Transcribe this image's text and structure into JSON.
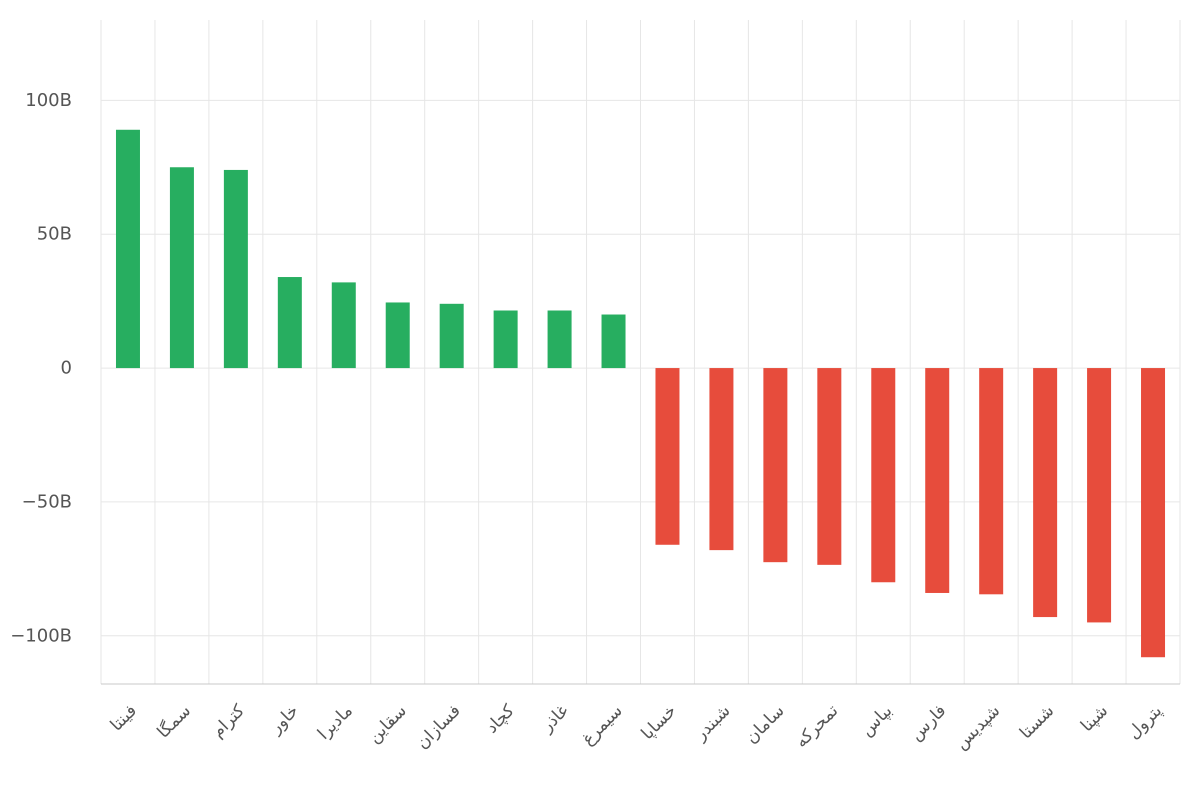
{
  "chart_data": {
    "type": "bar",
    "categories": [
      "فینتا",
      "سمگا",
      "کترام",
      "خاور",
      "مادیرا",
      "سقاین",
      "فسازان",
      "کچاد",
      "غاذر",
      "سیمرغ",
      "خساپا",
      "شبندر",
      "سامان",
      "تمحرکه",
      "بپاس",
      "فارس",
      "شپدیس",
      "شستا",
      "شپنا",
      "پترول"
    ],
    "values": [
      89,
      75,
      74,
      34,
      32,
      24.5,
      24,
      21.5,
      21.5,
      20,
      -66,
      -68,
      -72.5,
      -73.5,
      -80,
      -84,
      -84.5,
      -93,
      -95,
      -108
    ],
    "ylim": [
      -118,
      130
    ],
    "yticks": [
      100,
      50,
      0,
      -50,
      -100
    ],
    "ytick_labels": [
      "100B",
      "50B",
      "0",
      "−50B",
      "−100B"
    ],
    "grid": true,
    "colors": {
      "positive": "#27ae60",
      "negative": "#e74c3c"
    }
  }
}
